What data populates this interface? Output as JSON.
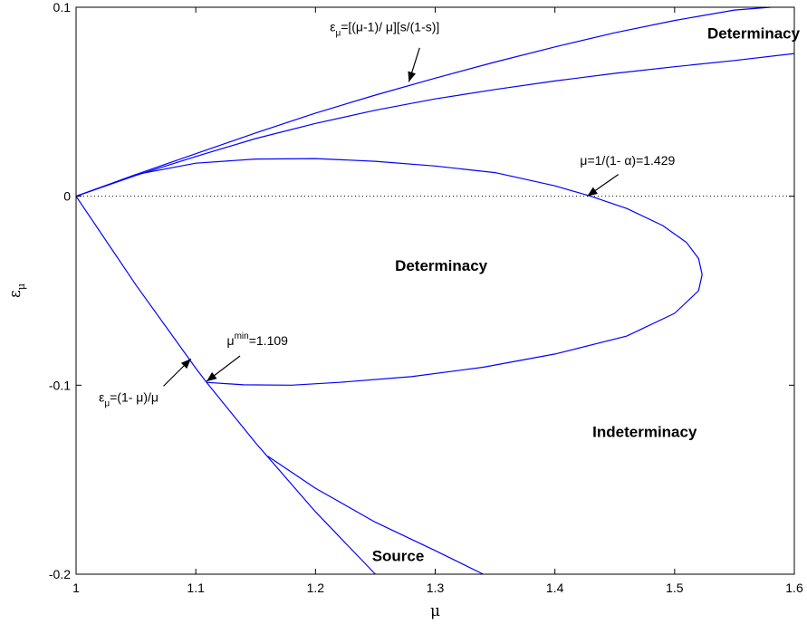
{
  "chart_data": {
    "type": "line",
    "xlabel": "μ",
    "ylabel": "ε",
    "ylabel_sub": "μ",
    "xlim": [
      1,
      1.6
    ],
    "ylim": [
      -0.2,
      0.1
    ],
    "grid": false,
    "colors": {
      "curve": "#0000ff",
      "reference": "#000000"
    },
    "x_ticks": [
      "1",
      "1.1",
      "1.2",
      "1.3",
      "1.4",
      "1.5",
      "1.6"
    ],
    "y_ticks": [
      "-0.2",
      "-0.1",
      "0"
    ],
    "y_top_tick": "0.1",
    "series": [
      {
        "x": [
          1.0,
          1.05,
          1.1,
          1.15,
          1.2,
          1.25,
          1.3,
          1.35,
          1.4,
          1.45,
          1.5,
          1.55,
          1.58
        ],
        "y": [
          0.0,
          0.0115,
          0.0225,
          0.0335,
          0.044,
          0.0535,
          0.0625,
          0.071,
          0.079,
          0.0865,
          0.093,
          0.0985,
          0.1
        ]
      },
      {
        "x": [
          1.0,
          1.05,
          1.1,
          1.15,
          1.2,
          1.25,
          1.3,
          1.35,
          1.4,
          1.45,
          1.5,
          1.55,
          1.6
        ],
        "y": [
          0.0,
          0.011,
          0.021,
          0.0305,
          0.0385,
          0.0455,
          0.0515,
          0.0565,
          0.061,
          0.065,
          0.0685,
          0.0718,
          0.0755
        ]
      },
      {
        "x": [
          1.0,
          1.05,
          1.1,
          1.15,
          1.2,
          1.25,
          1.3,
          1.35,
          1.4,
          1.43,
          1.46,
          1.49,
          1.51,
          1.52,
          1.523,
          1.52,
          1.5,
          1.46,
          1.4,
          1.34,
          1.28,
          1.22,
          1.18,
          1.14,
          1.109
        ],
        "y": [
          0.0,
          0.0115,
          0.0175,
          0.0197,
          0.0199,
          0.0185,
          0.016,
          0.0125,
          0.0055,
          0.0,
          -0.0065,
          -0.0155,
          -0.0245,
          -0.033,
          -0.0415,
          -0.05,
          -0.062,
          -0.074,
          -0.0835,
          -0.0905,
          -0.0955,
          -0.0985,
          -0.1,
          -0.0998,
          -0.0985
        ]
      },
      {
        "x": [
          1.0,
          1.05,
          1.1,
          1.109,
          1.15,
          1.2,
          1.25
        ],
        "y": [
          0.0,
          -0.047,
          -0.091,
          -0.0985,
          -0.1305,
          -0.167,
          -0.2
        ]
      },
      {
        "x": [
          1.16,
          1.2,
          1.25,
          1.3,
          1.34
        ],
        "y": [
          -0.1375,
          -0.1545,
          -0.1725,
          -0.1875,
          -0.2
        ]
      }
    ],
    "reference_line": {
      "y": 0
    },
    "regions": [
      {
        "label": "Determinacy",
        "x": 1.566,
        "y": 0.0835
      },
      {
        "label": "Determinacy",
        "x": 1.305,
        "y": -0.0395
      },
      {
        "label": "Indeterminacy",
        "x": 1.475,
        "y": -0.1275
      },
      {
        "label": "Source",
        "x": 1.269,
        "y": -0.193
      }
    ],
    "annotations": [
      {
        "id": "upper",
        "symbol": "ε",
        "sub": "μ",
        "text": "=[(μ-1)/ μ][s/(1-s)]",
        "tx": 1.212,
        "ty": 0.0873,
        "ax1": 1.287,
        "ay1": 0.0785,
        "ax2": 1.278,
        "ay2": 0.0605
      },
      {
        "id": "mu-alpha",
        "symbol": "",
        "sub": "",
        "text": "μ=1/(1- α)=1.429",
        "tx": 1.421,
        "ty": 0.0165,
        "ax1": 1.453,
        "ay1": 0.0115,
        "ax2": 1.427,
        "ay2": 0.0
      },
      {
        "id": "mu-min",
        "symbol": "μ",
        "sup": "min",
        "text": "=1.109",
        "tx": 1.126,
        "ty": -0.0787,
        "ax1": 1.137,
        "ay1": -0.0845,
        "ax2": 1.109,
        "ay2": -0.098
      },
      {
        "id": "lower",
        "symbol": "ε",
        "sub": "μ",
        "text": "=(1- μ)/μ",
        "tx": 1.019,
        "ty": -0.1087,
        "ax1": 1.073,
        "ay1": -0.1005,
        "ax2": 1.096,
        "ay2": -0.086
      }
    ]
  }
}
